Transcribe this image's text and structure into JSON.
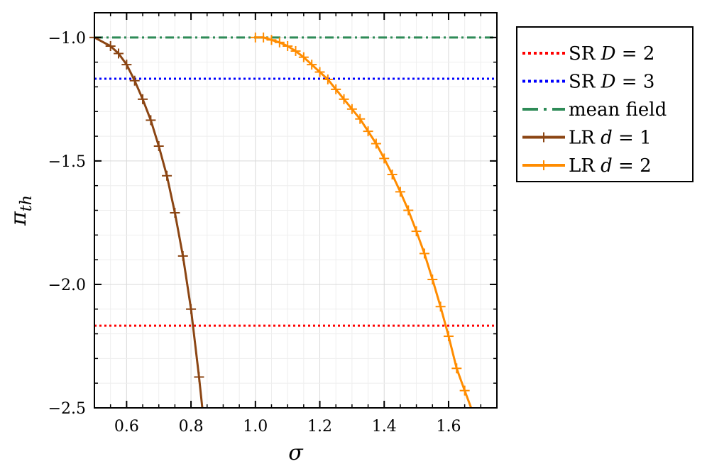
{
  "chart_data": {
    "type": "line",
    "xlabel": "σ",
    "ylabel": "π",
    "ylabel_sub": "th",
    "xlim": [
      0.5,
      1.75
    ],
    "ylim": [
      -2.5,
      -0.9
    ],
    "x_ticks": [
      0.6,
      0.8,
      1.0,
      1.2,
      1.4,
      1.6
    ],
    "x_tick_labels": [
      "0.6",
      "0.8",
      "1.0",
      "1.2",
      "1.4",
      "1.6"
    ],
    "y_ticks": [
      -1.0,
      -1.5,
      -2.0,
      -2.5
    ],
    "y_tick_labels": [
      "−1.0",
      "−1.5",
      "−2.0",
      "−2.5"
    ],
    "grid": true,
    "legend_position": "outside-right-top",
    "series": [
      {
        "name": "SR D = 2",
        "legend_prefix": "SR ",
        "legend_var": "D",
        "legend_suffix": " = 2",
        "kind": "hline",
        "y": -2.167,
        "color": "#ff0000",
        "dash": "dotted"
      },
      {
        "name": "SR D = 3",
        "legend_prefix": "SR ",
        "legend_var": "D",
        "legend_suffix": " = 3",
        "kind": "hline",
        "y": -1.167,
        "color": "#0000ff",
        "dash": "dotted"
      },
      {
        "name": "mean field",
        "legend_prefix": "mean field",
        "legend_var": "",
        "legend_suffix": "",
        "kind": "hline",
        "y": -1.0,
        "color": "#2e8b57",
        "dash": "dashdot"
      },
      {
        "name": "LR d = 1",
        "legend_prefix": "LR ",
        "legend_var": "d",
        "legend_suffix": " = 1",
        "kind": "curve",
        "color": "#8b4513",
        "marker": "+",
        "x": [
          0.5,
          0.55,
          0.575,
          0.6,
          0.625,
          0.65,
          0.675,
          0.7,
          0.725,
          0.75,
          0.775,
          0.8,
          0.825,
          0.835
        ],
        "y": [
          -1.0,
          -1.035,
          -1.065,
          -1.11,
          -1.175,
          -1.25,
          -1.335,
          -1.44,
          -1.56,
          -1.71,
          -1.885,
          -2.1,
          -2.375,
          -2.5
        ]
      },
      {
        "name": "LR d = 2",
        "legend_prefix": "LR ",
        "legend_var": "d",
        "legend_suffix": " = 2",
        "kind": "curve",
        "color": "#ff8c00",
        "marker": "+",
        "x": [
          1.0,
          1.025,
          1.05,
          1.075,
          1.1,
          1.125,
          1.15,
          1.175,
          1.2,
          1.225,
          1.25,
          1.275,
          1.3,
          1.325,
          1.35,
          1.375,
          1.4,
          1.425,
          1.45,
          1.475,
          1.5,
          1.525,
          1.55,
          1.575,
          1.6,
          1.625,
          1.65,
          1.67
        ],
        "y": [
          -1.0,
          -1.0,
          -1.01,
          -1.02,
          -1.035,
          -1.055,
          -1.08,
          -1.11,
          -1.14,
          -1.17,
          -1.21,
          -1.25,
          -1.29,
          -1.33,
          -1.38,
          -1.43,
          -1.49,
          -1.555,
          -1.625,
          -1.7,
          -1.785,
          -1.875,
          -1.98,
          -2.09,
          -2.21,
          -2.34,
          -2.43,
          -2.5
        ]
      }
    ]
  }
}
